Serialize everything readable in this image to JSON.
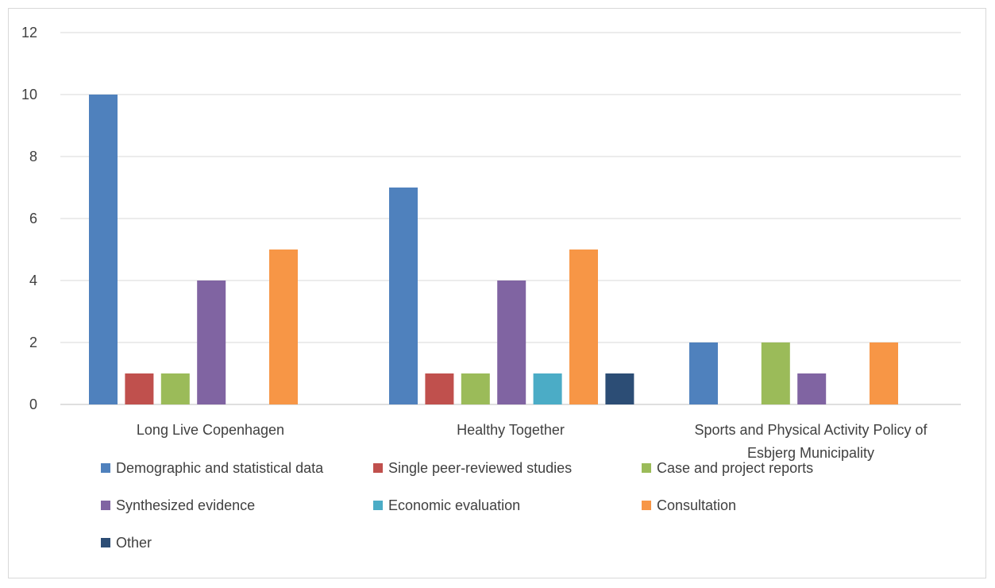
{
  "chart_data": {
    "type": "bar",
    "categories": [
      [
        "Long Live Copenhagen"
      ],
      [
        "Healthy Together"
      ],
      [
        "Sports and Physical Activity Policy of",
        "Esbjerg Municipality"
      ]
    ],
    "series": [
      {
        "name": "Demographic and statistical data",
        "color": "#4f81bd",
        "values": [
          10,
          7,
          2
        ]
      },
      {
        "name": "Single peer-reviewed studies",
        "color": "#c0504d",
        "values": [
          1,
          1,
          0
        ]
      },
      {
        "name": "Case and project reports",
        "color": "#9bbb59",
        "values": [
          1,
          1,
          2
        ]
      },
      {
        "name": "Synthesized evidence",
        "color": "#8064a2",
        "values": [
          4,
          4,
          1
        ]
      },
      {
        "name": "Economic evaluation",
        "color": "#4bacc6",
        "values": [
          0,
          1,
          0
        ]
      },
      {
        "name": "Consultation",
        "color": "#f79646",
        "values": [
          5,
          5,
          2
        ]
      },
      {
        "name": "Other",
        "color": "#2c4d75",
        "values": [
          0,
          1,
          0
        ]
      }
    ],
    "ylim": [
      0,
      12
    ],
    "yticks": [
      0,
      2,
      4,
      6,
      8,
      10,
      12
    ],
    "grid": true,
    "legend": "bottom",
    "title": "",
    "xlabel": "",
    "ylabel": ""
  }
}
